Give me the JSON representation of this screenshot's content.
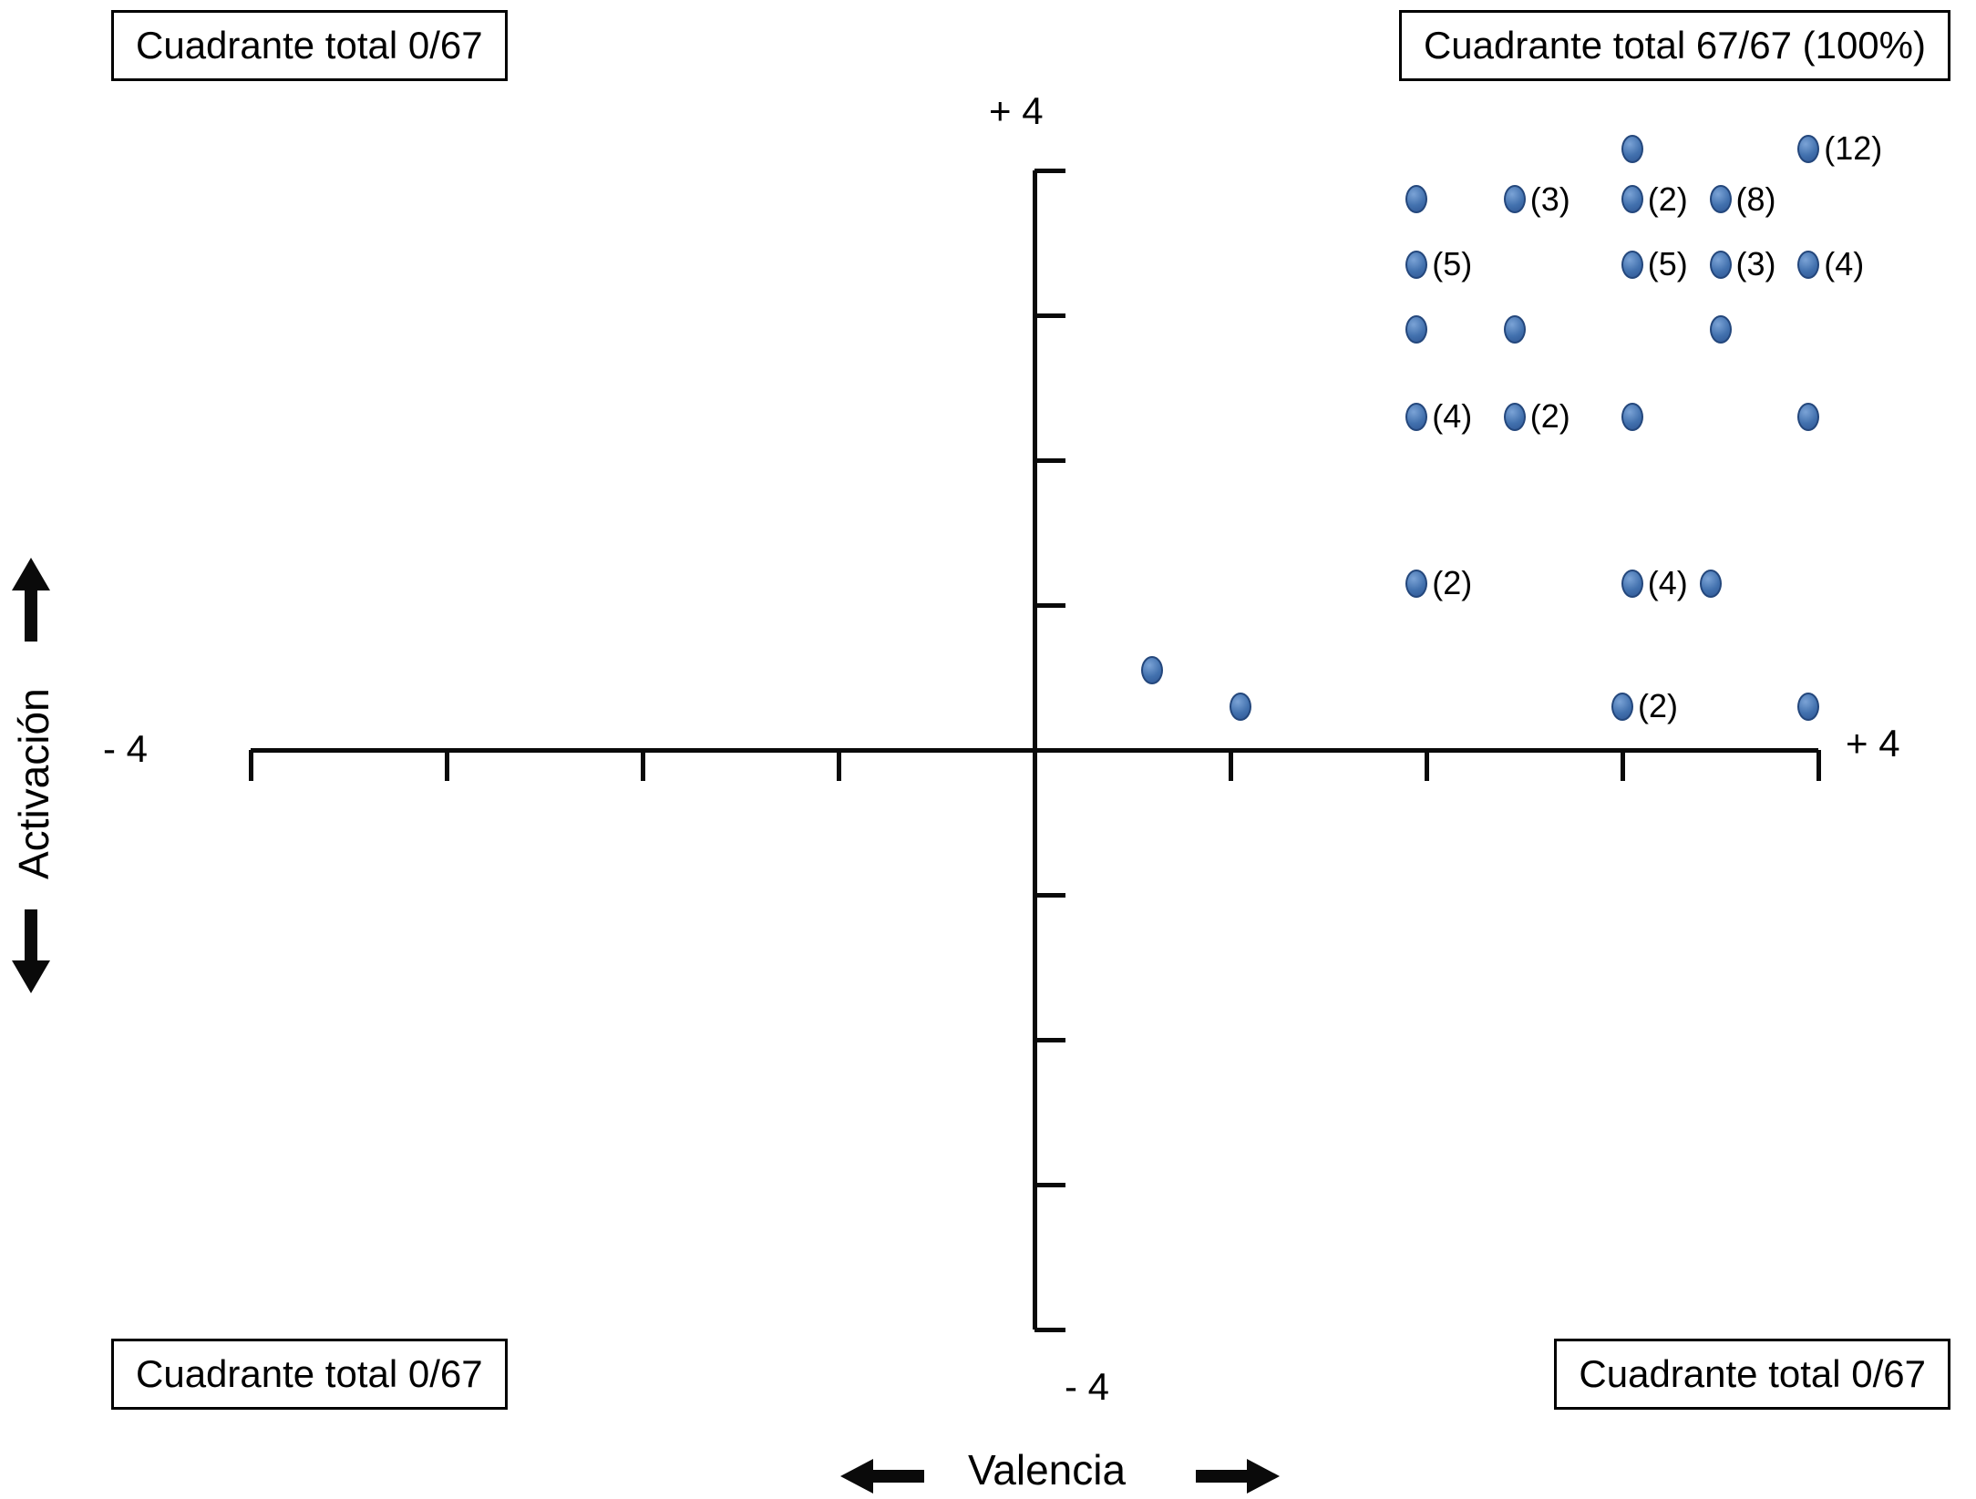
{
  "chart_data": {
    "type": "scatter",
    "title": "",
    "xlabel": "Valencia",
    "ylabel": "Activación",
    "xlim": [
      -4,
      4
    ],
    "ylim": [
      -4,
      4
    ],
    "grid": false,
    "point_color": "#3f6cab",
    "axes": {
      "x_label": "Valencia",
      "y_label": "Activación",
      "x_min_label": "- 4",
      "x_max_label": "+ 4",
      "y_min_label": "- 4",
      "y_max_label": "+ 4"
    },
    "quadrants": {
      "top_left": "Cuadrante total 0/67",
      "top_right": "Cuadrante total 67/67 (100%)",
      "bottom_left": "Cuadrante total 0/67",
      "bottom_right": "Cuadrante total 0/67"
    },
    "points": [
      {
        "x": 3.05,
        "y": 4.15,
        "label": ""
      },
      {
        "x": 3.95,
        "y": 4.15,
        "label": "(12)"
      },
      {
        "x": 1.95,
        "y": 3.8,
        "label": ""
      },
      {
        "x": 2.45,
        "y": 3.8,
        "label": "(3)"
      },
      {
        "x": 3.05,
        "y": 3.8,
        "label": "(2)"
      },
      {
        "x": 3.5,
        "y": 3.8,
        "label": "(8)"
      },
      {
        "x": 1.95,
        "y": 3.35,
        "label": "(5)"
      },
      {
        "x": 3.05,
        "y": 3.35,
        "label": "(5)"
      },
      {
        "x": 3.5,
        "y": 3.35,
        "label": "(3)"
      },
      {
        "x": 3.95,
        "y": 3.35,
        "label": "(4)"
      },
      {
        "x": 1.95,
        "y": 2.9,
        "label": ""
      },
      {
        "x": 2.45,
        "y": 2.9,
        "label": ""
      },
      {
        "x": 3.5,
        "y": 2.9,
        "label": ""
      },
      {
        "x": 1.95,
        "y": 2.3,
        "label": "(4)"
      },
      {
        "x": 2.45,
        "y": 2.3,
        "label": "(2)"
      },
      {
        "x": 3.05,
        "y": 2.3,
        "label": ""
      },
      {
        "x": 3.95,
        "y": 2.3,
        "label": ""
      },
      {
        "x": 1.95,
        "y": 1.15,
        "label": "(2)"
      },
      {
        "x": 3.05,
        "y": 1.15,
        "label": "(4)"
      },
      {
        "x": 3.45,
        "y": 1.15,
        "label": ""
      },
      {
        "x": 0.6,
        "y": 0.55,
        "label": ""
      },
      {
        "x": 1.05,
        "y": 0.3,
        "label": ""
      },
      {
        "x": 3.0,
        "y": 0.3,
        "label": "(2)"
      },
      {
        "x": 3.95,
        "y": 0.3,
        "label": ""
      }
    ]
  }
}
